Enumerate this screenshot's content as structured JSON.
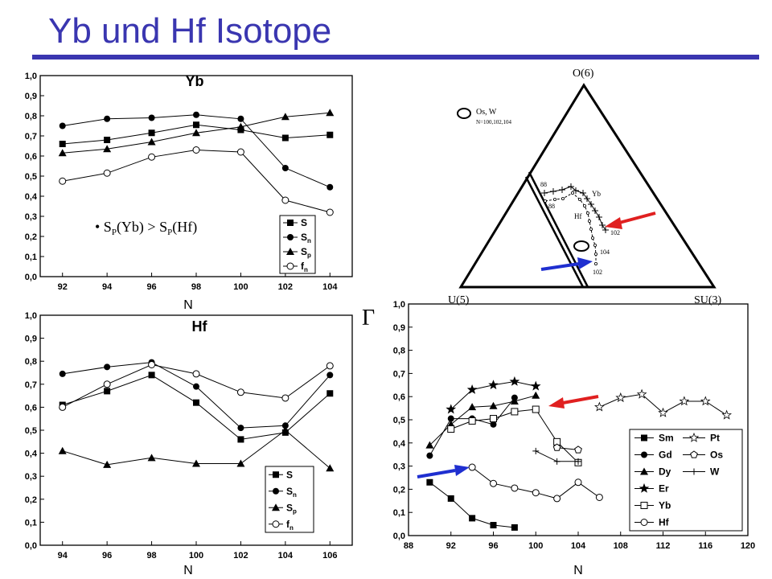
{
  "slide": {
    "title": "Yb und Hf Isotope",
    "bullet": "• S",
    "bullet_sub1": "P",
    "bullet_mid": "(Yb) >  S",
    "bullet_sub2": "P",
    "bullet_end": "(Hf)",
    "gamma": "Γ"
  },
  "triangle": {
    "top_label": "O(6)",
    "left_label": "U(5)",
    "right_label": "SU(3)",
    "legend_text": "Os, W",
    "legend_sub": "N=100,102,104",
    "yb_label": "Yb",
    "hf_label": "Hf",
    "labels_88a": "88",
    "labels_88b": "88",
    "label_102a": "102",
    "label_104": "104",
    "label_102b": "102"
  },
  "colors": {
    "title": "#3a36b0",
    "red_arrow": "#e02020",
    "blue_arrow": "#1f2fd0"
  },
  "chart_data": [
    {
      "type": "line",
      "title": "Yb",
      "xlabel": "N",
      "x": [
        92,
        94,
        96,
        98,
        100,
        102,
        104
      ],
      "xticks": [
        "92",
        "94",
        "96",
        "98",
        "100",
        "102",
        "104"
      ],
      "ylim": [
        0,
        1.0
      ],
      "yticks": [
        "0,0",
        "0,1",
        "0,2",
        "0,3",
        "0,4",
        "0,5",
        "0,6",
        "0,7",
        "0,8",
        "0,9",
        "1,0"
      ],
      "series": [
        {
          "name": "S",
          "marker": "square",
          "values": [
            0.66,
            0.68,
            0.715,
            0.755,
            0.73,
            0.69,
            0.705
          ]
        },
        {
          "name": "S_n",
          "marker": "circle",
          "values": [
            0.75,
            0.785,
            0.79,
            0.805,
            0.785,
            0.54,
            0.445
          ]
        },
        {
          "name": "S_p",
          "marker": "triangle",
          "values": [
            0.615,
            0.635,
            0.67,
            0.715,
            0.745,
            0.795,
            0.815
          ]
        },
        {
          "name": "f_n",
          "marker": "open-circle",
          "values": [
            0.475,
            0.515,
            0.595,
            0.63,
            0.62,
            0.38,
            0.32
          ]
        }
      ],
      "legend": [
        "S",
        "S",
        "S",
        "f"
      ],
      "legend_subs": [
        "",
        "n",
        "p",
        "n"
      ]
    },
    {
      "type": "line",
      "title": "Hf",
      "xlabel": "N",
      "x": [
        94,
        96,
        98,
        100,
        102,
        104,
        106
      ],
      "xticks": [
        "94",
        "96",
        "98",
        "100",
        "102",
        "104",
        "106"
      ],
      "ylim": [
        0,
        1.0
      ],
      "yticks": [
        "0,0",
        "0,1",
        "0,2",
        "0,3",
        "0,4",
        "0,5",
        "0,6",
        "0,7",
        "0,8",
        "0,9",
        "1,0"
      ],
      "series": [
        {
          "name": "S",
          "marker": "square",
          "values": [
            0.61,
            0.67,
            0.74,
            0.62,
            0.46,
            0.49,
            0.66
          ]
        },
        {
          "name": "S_n",
          "marker": "circle",
          "values": [
            0.745,
            0.775,
            0.795,
            0.69,
            0.51,
            0.52,
            0.74
          ]
        },
        {
          "name": "S_p",
          "marker": "triangle",
          "values": [
            0.41,
            0.35,
            0.38,
            0.355,
            0.355,
            0.5,
            0.335
          ]
        },
        {
          "name": "f_n",
          "marker": "open-circle",
          "values": [
            0.6,
            0.7,
            0.785,
            0.745,
            0.665,
            0.64,
            0.78
          ]
        }
      ],
      "legend": [
        "S",
        "S",
        "S",
        "f"
      ],
      "legend_subs": [
        "",
        "n",
        "p",
        "n"
      ]
    },
    {
      "type": "line",
      "xlabel": "N",
      "xlim": [
        88,
        120
      ],
      "xticks": [
        "88",
        "92",
        "96",
        "100",
        "104",
        "108",
        "112",
        "116",
        "120"
      ],
      "ylim": [
        0,
        1.0
      ],
      "yticks": [
        "0,0",
        "0,1",
        "0,2",
        "0,3",
        "0,4",
        "0,5",
        "0,6",
        "0,7",
        "0,8",
        "0,9",
        "1,0"
      ],
      "series": [
        {
          "name": "Sm",
          "marker": "square",
          "x": [
            90,
            92,
            94,
            96,
            98
          ],
          "values": [
            0.23,
            0.16,
            0.075,
            0.045,
            0.035
          ]
        },
        {
          "name": "Gd",
          "marker": "circle",
          "x": [
            90,
            92,
            94,
            96,
            98
          ],
          "values": [
            0.345,
            0.505,
            0.505,
            0.48,
            0.595
          ]
        },
        {
          "name": "Dy",
          "marker": "triangle",
          "x": [
            90,
            92,
            94,
            96,
            98,
            100
          ],
          "values": [
            0.39,
            0.48,
            0.555,
            0.56,
            0.58,
            0.605
          ]
        },
        {
          "name": "Er",
          "marker": "star",
          "x": [
            92,
            94,
            96,
            98,
            100
          ],
          "values": [
            0.545,
            0.63,
            0.65,
            0.665,
            0.645
          ]
        },
        {
          "name": "Yb",
          "marker": "open-square",
          "x": [
            92,
            94,
            96,
            98,
            100,
            102,
            104
          ],
          "values": [
            0.46,
            0.495,
            0.505,
            0.535,
            0.545,
            0.405,
            0.315
          ]
        },
        {
          "name": "Hf",
          "marker": "open-circle",
          "x": [
            94,
            96,
            98,
            100,
            102,
            104,
            106
          ],
          "values": [
            0.295,
            0.225,
            0.205,
            0.185,
            0.16,
            0.23,
            0.165
          ]
        },
        {
          "name": "Pt",
          "marker": "open-star",
          "x": [
            106,
            108,
            110,
            112,
            114,
            116,
            118
          ],
          "values": [
            0.555,
            0.595,
            0.61,
            0.53,
            0.58,
            0.58,
            0.52
          ]
        },
        {
          "name": "Os",
          "marker": "open-pentagon",
          "x": [
            102,
            104
          ],
          "values": [
            0.38,
            0.37
          ]
        },
        {
          "name": "W",
          "marker": "plus",
          "x": [
            100,
            102,
            104
          ],
          "values": [
            0.365,
            0.32,
            0.32
          ]
        }
      ],
      "legend_left": [
        "Sm",
        "Gd",
        "Dy",
        "Er",
        "Yb",
        "Hf"
      ],
      "legend_right": [
        "Pt",
        "Os",
        "W"
      ]
    }
  ]
}
